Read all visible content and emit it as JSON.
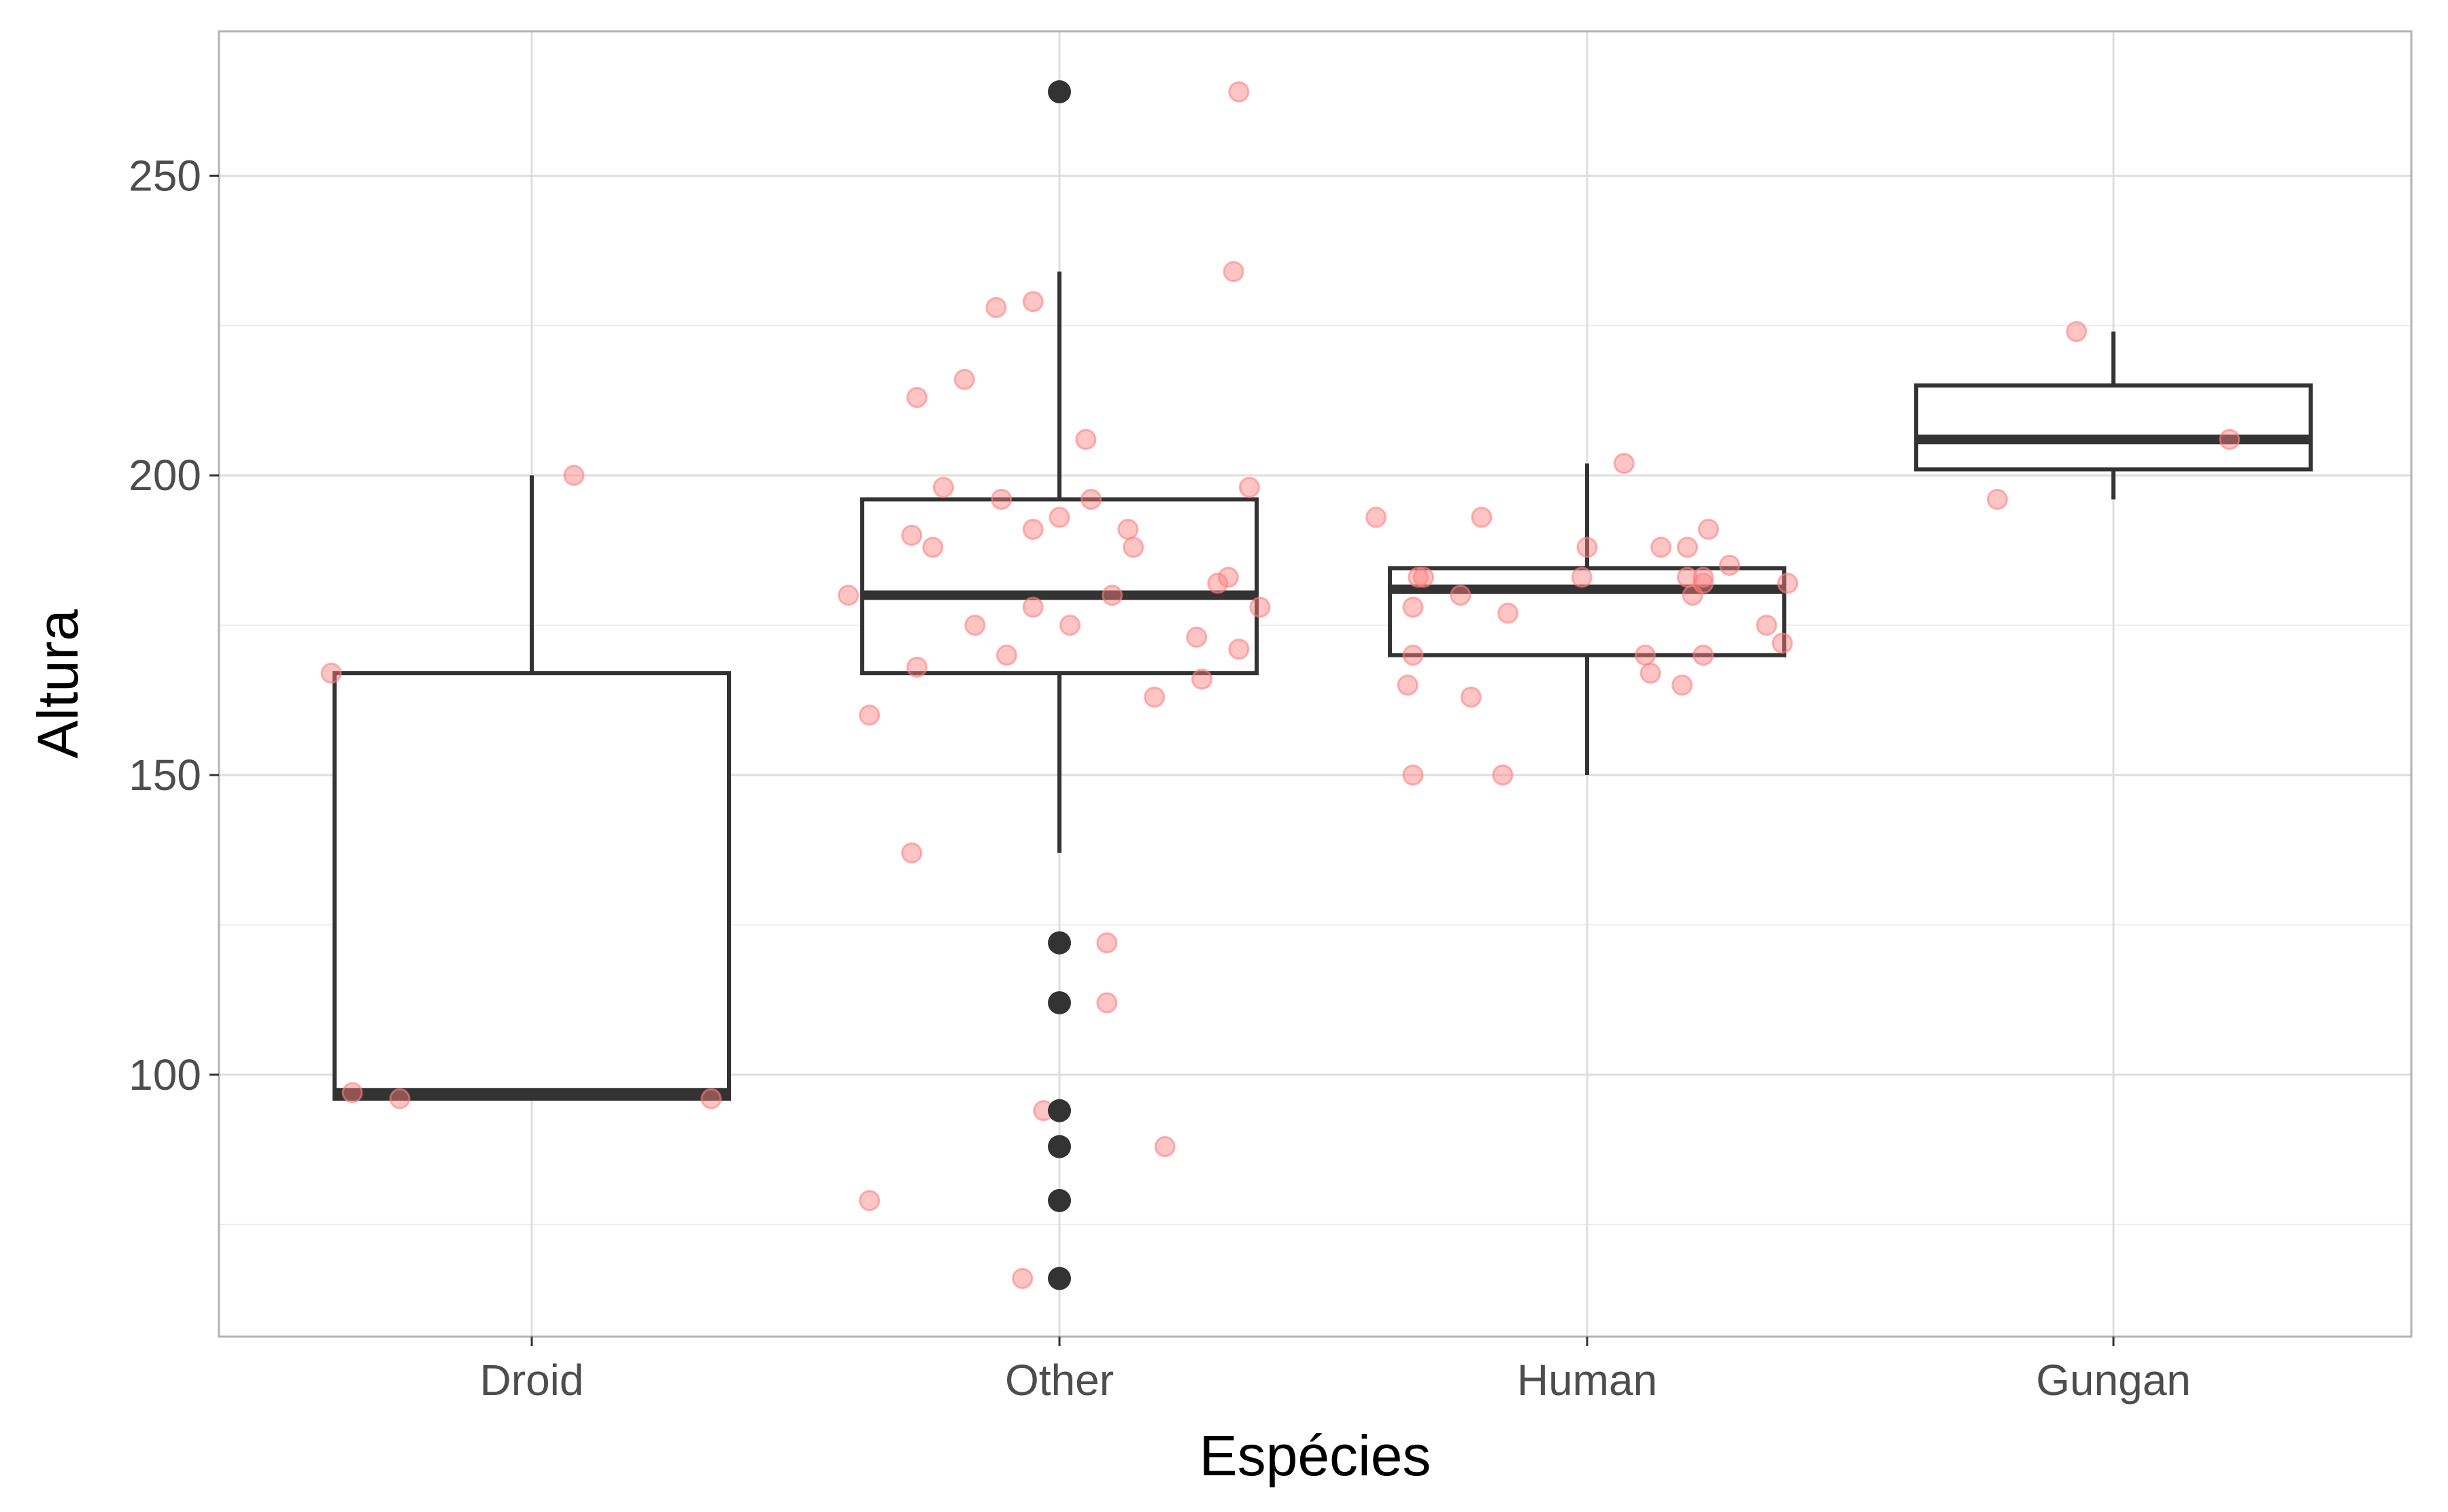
{
  "chart_data": {
    "type": "boxplot",
    "title": "",
    "xlabel": "Espécies",
    "ylabel": "Altura",
    "categories": [
      "Droid",
      "Other",
      "Human",
      "Gungan"
    ],
    "ylim": [
      56.3,
      274.1
    ],
    "yticks": [
      100,
      150,
      200,
      250
    ],
    "grid": true,
    "colors": {
      "box_stroke": "#333333",
      "outlier": "#333333",
      "jitter_point": "#ff7f7f",
      "grid": "#dedede",
      "panel_border": "#b3b3b3"
    },
    "boxes": [
      {
        "category": "Droid",
        "whisker_low": 96,
        "q1": 96,
        "median": 97,
        "q3": 167,
        "whisker_high": 200,
        "outliers": []
      },
      {
        "category": "Other",
        "whisker_low": 137,
        "q1": 167,
        "median": 180,
        "q3": 196,
        "whisker_high": 234,
        "outliers": [
          264,
          122,
          112,
          94,
          88,
          79,
          66
        ]
      },
      {
        "category": "Human",
        "whisker_low": 150,
        "q1": 170,
        "median": 181,
        "q3": 184.5,
        "whisker_high": 202,
        "outliers": []
      },
      {
        "category": "Gungan",
        "whisker_low": 196,
        "q1": 201,
        "median": 206,
        "q3": 215,
        "whisker_high": 224,
        "outliers": []
      }
    ],
    "jitter_points": [
      {
        "category": "Droid",
        "offset": -0.38,
        "y": 167
      },
      {
        "category": "Droid",
        "offset": -0.34,
        "y": 97
      },
      {
        "category": "Droid",
        "offset": -0.25,
        "y": 96
      },
      {
        "category": "Droid",
        "offset": 0.08,
        "y": 200
      },
      {
        "category": "Droid",
        "offset": 0.34,
        "y": 96
      },
      {
        "category": "Other",
        "offset": 0.34,
        "y": 264
      },
      {
        "category": "Other",
        "offset": 0.33,
        "y": 234
      },
      {
        "category": "Other",
        "offset": -0.05,
        "y": 229
      },
      {
        "category": "Other",
        "offset": -0.12,
        "y": 228
      },
      {
        "category": "Other",
        "offset": -0.18,
        "y": 216
      },
      {
        "category": "Other",
        "offset": -0.27,
        "y": 213
      },
      {
        "category": "Other",
        "offset": 0.05,
        "y": 206
      },
      {
        "category": "Other",
        "offset": -0.22,
        "y": 198
      },
      {
        "category": "Other",
        "offset": 0.36,
        "y": 198
      },
      {
        "category": "Other",
        "offset": -0.11,
        "y": 196
      },
      {
        "category": "Other",
        "offset": 0.06,
        "y": 196
      },
      {
        "category": "Other",
        "offset": 0.0,
        "y": 193
      },
      {
        "category": "Other",
        "offset": -0.05,
        "y": 191
      },
      {
        "category": "Other",
        "offset": 0.13,
        "y": 191
      },
      {
        "category": "Other",
        "offset": -0.28,
        "y": 190
      },
      {
        "category": "Other",
        "offset": -0.24,
        "y": 188
      },
      {
        "category": "Other",
        "offset": 0.14,
        "y": 188
      },
      {
        "category": "Other",
        "offset": 0.32,
        "y": 183
      },
      {
        "category": "Other",
        "offset": 0.3,
        "y": 182
      },
      {
        "category": "Other",
        "offset": -0.4,
        "y": 180
      },
      {
        "category": "Other",
        "offset": 0.1,
        "y": 180
      },
      {
        "category": "Other",
        "offset": -0.05,
        "y": 178
      },
      {
        "category": "Other",
        "offset": 0.38,
        "y": 178
      },
      {
        "category": "Other",
        "offset": -0.16,
        "y": 175
      },
      {
        "category": "Other",
        "offset": 0.02,
        "y": 175
      },
      {
        "category": "Other",
        "offset": 0.26,
        "y": 173
      },
      {
        "category": "Other",
        "offset": 0.34,
        "y": 171
      },
      {
        "category": "Other",
        "offset": -0.1,
        "y": 170
      },
      {
        "category": "Other",
        "offset": -0.27,
        "y": 168
      },
      {
        "category": "Other",
        "offset": 0.27,
        "y": 166
      },
      {
        "category": "Other",
        "offset": 0.18,
        "y": 163
      },
      {
        "category": "Other",
        "offset": -0.36,
        "y": 160
      },
      {
        "category": "Other",
        "offset": -0.28,
        "y": 137
      },
      {
        "category": "Other",
        "offset": 0.09,
        "y": 122
      },
      {
        "category": "Other",
        "offset": 0.09,
        "y": 112
      },
      {
        "category": "Other",
        "offset": -0.03,
        "y": 94
      },
      {
        "category": "Other",
        "offset": 0.2,
        "y": 88
      },
      {
        "category": "Other",
        "offset": -0.36,
        "y": 79
      },
      {
        "category": "Other",
        "offset": -0.07,
        "y": 66
      },
      {
        "category": "Human",
        "offset": 0.07,
        "y": 202
      },
      {
        "category": "Human",
        "offset": -0.4,
        "y": 193
      },
      {
        "category": "Human",
        "offset": -0.2,
        "y": 193
      },
      {
        "category": "Human",
        "offset": 0.23,
        "y": 191
      },
      {
        "category": "Human",
        "offset": 0.0,
        "y": 188
      },
      {
        "category": "Human",
        "offset": 0.14,
        "y": 188
      },
      {
        "category": "Human",
        "offset": 0.19,
        "y": 188
      },
      {
        "category": "Human",
        "offset": 0.27,
        "y": 185
      },
      {
        "category": "Human",
        "offset": 0.19,
        "y": 183
      },
      {
        "category": "Human",
        "offset": 0.22,
        "y": 183
      },
      {
        "category": "Human",
        "offset": -0.31,
        "y": 183
      },
      {
        "category": "Human",
        "offset": -0.32,
        "y": 183
      },
      {
        "category": "Human",
        "offset": -0.01,
        "y": 183
      },
      {
        "category": "Human",
        "offset": 0.38,
        "y": 182
      },
      {
        "category": "Human",
        "offset": 0.22,
        "y": 182
      },
      {
        "category": "Human",
        "offset": 0.2,
        "y": 180
      },
      {
        "category": "Human",
        "offset": -0.24,
        "y": 180
      },
      {
        "category": "Human",
        "offset": -0.33,
        "y": 178
      },
      {
        "category": "Human",
        "offset": -0.15,
        "y": 177
      },
      {
        "category": "Human",
        "offset": 0.34,
        "y": 175
      },
      {
        "category": "Human",
        "offset": 0.37,
        "y": 172
      },
      {
        "category": "Human",
        "offset": 0.11,
        "y": 170
      },
      {
        "category": "Human",
        "offset": 0.22,
        "y": 170
      },
      {
        "category": "Human",
        "offset": -0.33,
        "y": 170
      },
      {
        "category": "Human",
        "offset": 0.12,
        "y": 167
      },
      {
        "category": "Human",
        "offset": -0.34,
        "y": 165
      },
      {
        "category": "Human",
        "offset": 0.18,
        "y": 165
      },
      {
        "category": "Human",
        "offset": -0.22,
        "y": 163
      },
      {
        "category": "Human",
        "offset": -0.33,
        "y": 150
      },
      {
        "category": "Human",
        "offset": -0.16,
        "y": 150
      },
      {
        "category": "Gungan",
        "offset": -0.07,
        "y": 224
      },
      {
        "category": "Gungan",
        "offset": 0.22,
        "y": 206
      },
      {
        "category": "Gungan",
        "offset": -0.22,
        "y": 196
      }
    ]
  }
}
